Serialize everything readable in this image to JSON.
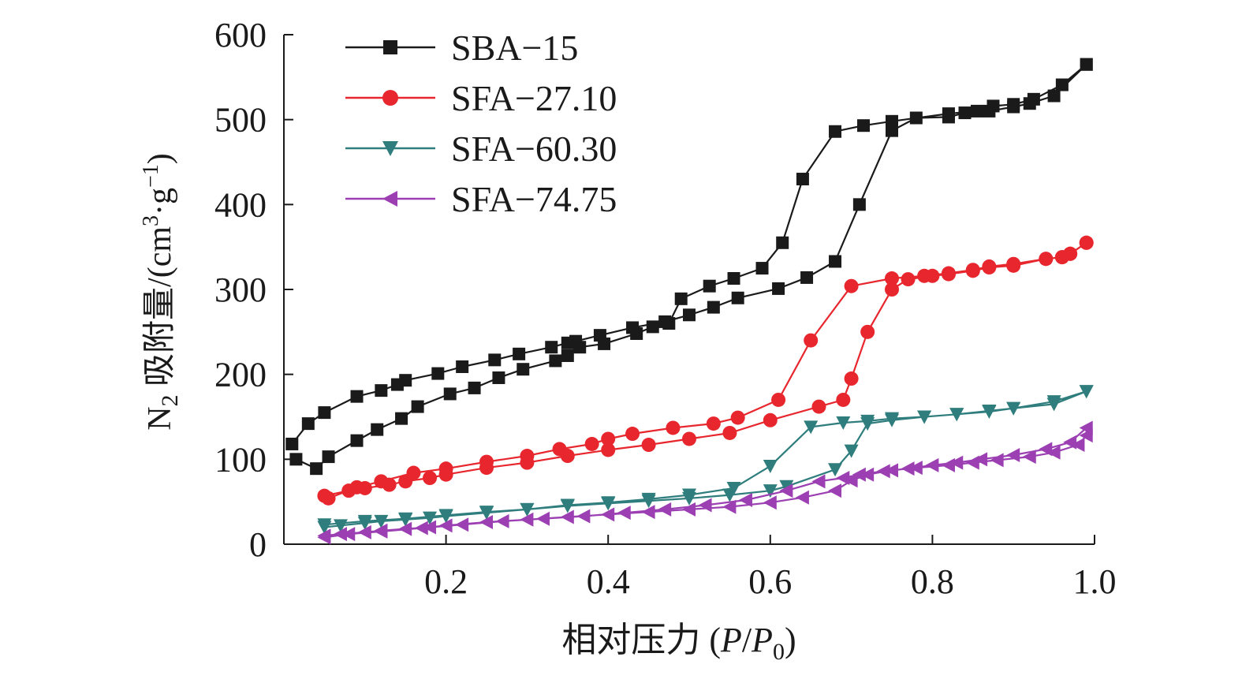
{
  "chart_data": {
    "type": "line",
    "xlabel": "相对压力 (P/P₀)",
    "xlabel_parts": {
      "prefix": "相对压力 (",
      "p": "P",
      "slash": "/",
      "p0": "P",
      "p0_sub": "0",
      "suffix": ")"
    },
    "ylabel": "N₂ 吸附量/(cm³·g⁻¹)",
    "ylabel_parts": {
      "n": "N",
      "n_sub": "2",
      "mid": " 吸附量/(cm",
      "cm_sup": "3",
      "dot": "·g",
      "g_sup": "−1",
      "end": ")"
    },
    "xlim": [
      0.0,
      1.0
    ],
    "ylim": [
      0,
      600
    ],
    "xticks": [
      0.2,
      0.4,
      0.6,
      0.8,
      1.0
    ],
    "xtick_labels": [
      "0.2",
      "0.4",
      "0.6",
      "0.8",
      "1.0"
    ],
    "yticks": [
      0,
      100,
      200,
      300,
      400,
      500,
      600
    ],
    "ytick_labels": [
      "0",
      "100",
      "200",
      "300",
      "400",
      "500",
      "600"
    ],
    "legend_position": "top-left",
    "series": [
      {
        "name": "SBA−15",
        "color": "#1a1a1a",
        "marker": "square",
        "x": [
          0.01,
          0.03,
          0.05,
          0.09,
          0.12,
          0.14,
          0.15,
          0.19,
          0.22,
          0.26,
          0.29,
          0.33,
          0.35,
          0.36,
          0.39,
          0.43,
          0.47,
          0.5,
          0.53,
          0.56,
          0.61,
          0.645,
          0.68,
          0.71,
          0.75,
          0.78,
          0.82,
          0.84,
          0.87,
          0.9,
          0.92,
          0.95,
          0.99,
          0.99,
          0.96,
          0.925,
          0.9,
          0.875,
          0.855,
          0.82,
          0.75,
          0.715,
          0.68,
          0.64,
          0.615,
          0.59,
          0.555,
          0.525,
          0.49,
          0.475,
          0.455,
          0.435,
          0.395,
          0.365,
          0.35,
          0.335,
          0.295,
          0.265,
          0.235,
          0.205,
          0.165,
          0.145,
          0.115,
          0.09,
          0.055,
          0.04,
          0.015
        ],
        "y": [
          118,
          142,
          155,
          174,
          181,
          188,
          193,
          201,
          209,
          217,
          224,
          232,
          237,
          239,
          246,
          255,
          262,
          270,
          279,
          290,
          301,
          314,
          333,
          400,
          487,
          502,
          503,
          508,
          510,
          515,
          519,
          528,
          565,
          565,
          541,
          524,
          518,
          516,
          510,
          507,
          498,
          493,
          486,
          430,
          355,
          325,
          313,
          304,
          289,
          260,
          256,
          248,
          236,
          232,
          222,
          216,
          206,
          196,
          184,
          177,
          162,
          148,
          135,
          122,
          103,
          89,
          100
        ]
      },
      {
        "name": "SFA−27.10",
        "color": "#e8262d",
        "marker": "circle",
        "x": [
          0.05,
          0.08,
          0.1,
          0.13,
          0.15,
          0.18,
          0.2,
          0.25,
          0.3,
          0.35,
          0.4,
          0.45,
          0.5,
          0.55,
          0.6,
          0.66,
          0.69,
          0.7,
          0.72,
          0.75,
          0.77,
          0.8,
          0.82,
          0.85,
          0.87,
          0.9,
          0.94,
          0.96,
          0.97,
          0.99,
          0.99,
          0.97,
          0.96,
          0.94,
          0.9,
          0.87,
          0.85,
          0.82,
          0.79,
          0.75,
          0.7,
          0.65,
          0.61,
          0.56,
          0.53,
          0.48,
          0.43,
          0.4,
          0.38,
          0.34,
          0.3,
          0.25,
          0.2,
          0.16,
          0.12,
          0.09,
          0.055
        ],
        "y": [
          57,
          63,
          66,
          70,
          74,
          78,
          82,
          90,
          96,
          104,
          111,
          117,
          124,
          131,
          146,
          162,
          170,
          195,
          250,
          300,
          312,
          316,
          318,
          322,
          326,
          328,
          336,
          338,
          342,
          355,
          355,
          342,
          338,
          336,
          330,
          327,
          323,
          319,
          316,
          313,
          304,
          240,
          170,
          149,
          142,
          137,
          130,
          124,
          118,
          112,
          104,
          97,
          89,
          84,
          74,
          67,
          54
        ]
      },
      {
        "name": "SFA−60.30",
        "color": "#2f7d7d",
        "marker": "triangle-down",
        "x": [
          0.05,
          0.07,
          0.1,
          0.12,
          0.15,
          0.18,
          0.2,
          0.25,
          0.3,
          0.35,
          0.4,
          0.45,
          0.5,
          0.55,
          0.6,
          0.62,
          0.68,
          0.7,
          0.72,
          0.75,
          0.79,
          0.83,
          0.87,
          0.9,
          0.95,
          0.99,
          0.99,
          0.95,
          0.9,
          0.87,
          0.83,
          0.79,
          0.75,
          0.72,
          0.69,
          0.65,
          0.6,
          0.555,
          0.5,
          0.45,
          0.4,
          0.35,
          0.3,
          0.25,
          0.2,
          0.15,
          0.1,
          0.05
        ],
        "y": [
          20,
          22,
          25,
          27,
          29,
          31,
          33,
          37,
          41,
          45,
          48,
          51,
          54,
          58,
          63,
          68,
          88,
          110,
          142,
          146,
          150,
          153,
          156,
          160,
          165,
          180,
          180,
          168,
          160,
          157,
          153,
          150,
          148,
          145,
          143,
          138,
          92,
          66,
          58,
          53,
          49,
          46,
          41,
          38,
          34,
          30,
          27,
          23
        ]
      },
      {
        "name": "SFA−74.75",
        "color": "#9b3fb3",
        "marker": "triangle-left",
        "x": [
          0.05,
          0.07,
          0.1,
          0.12,
          0.15,
          0.18,
          0.2,
          0.25,
          0.3,
          0.35,
          0.4,
          0.45,
          0.5,
          0.55,
          0.6,
          0.64,
          0.68,
          0.7,
          0.72,
          0.75,
          0.78,
          0.82,
          0.85,
          0.88,
          0.92,
          0.95,
          0.98,
          0.99,
          0.99,
          0.97,
          0.94,
          0.9,
          0.86,
          0.83,
          0.8,
          0.77,
          0.74,
          0.71,
          0.69,
          0.66,
          0.62,
          0.57,
          0.52,
          0.47,
          0.42,
          0.37,
          0.32,
          0.27,
          0.22,
          0.17,
          0.12,
          0.08,
          0.05
        ],
        "y": [
          10,
          12,
          14,
          16,
          18,
          20,
          22,
          26,
          29,
          32,
          35,
          38,
          41,
          44,
          49,
          55,
          63,
          75,
          82,
          87,
          90,
          93,
          96,
          99,
          103,
          108,
          117,
          128,
          137,
          120,
          112,
          105,
          100,
          96,
          93,
          89,
          86,
          82,
          78,
          74,
          63,
          52,
          46,
          41,
          37,
          33,
          30,
          27,
          23,
          19,
          15,
          12,
          8
        ]
      }
    ]
  }
}
